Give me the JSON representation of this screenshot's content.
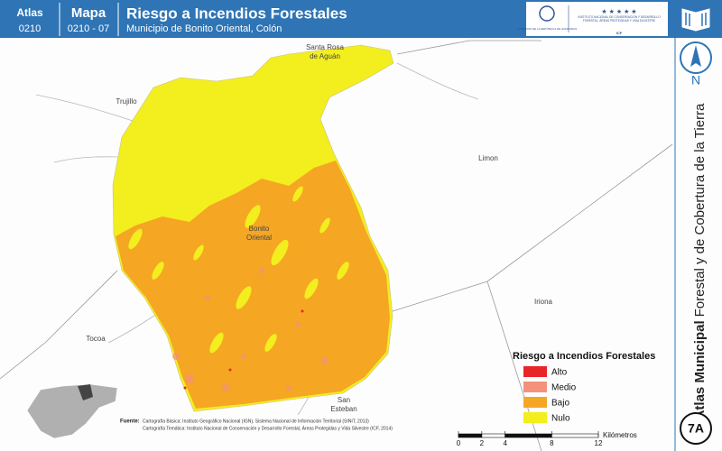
{
  "header": {
    "atlas_label": "Atlas",
    "atlas_code": "0210",
    "map_label": "Mapa",
    "map_code": "0210 - 07",
    "title": "Riesgo a Incendios Forestales",
    "subtitle": "Municipio de Bonito Oriental, Colón",
    "logo_left": "GOBIERNO DE LA REPÚBLICA DE HONDURAS",
    "logo_right": "INSTITUTO NACIONAL DE CONSERVACIÓN Y DESARROLLO FORESTAL, ÁREAS PROTEGIDAS Y VIDA SILVESTRE",
    "logo_right_abbr": "ICF"
  },
  "sidebar": {
    "north": "N",
    "series_bold": "Atlas Municipal",
    "series_rest": "Forestal y de Cobertura de la Tierra",
    "sheet": "7A"
  },
  "places": [
    {
      "lines": [
        "Santa Rosa",
        "de Aguán"
      ]
    },
    {
      "lines": [
        "Trujillo"
      ]
    },
    {
      "lines": [
        "Limon"
      ]
    },
    {
      "lines": [
        "Bonito",
        "Oriental"
      ]
    },
    {
      "lines": [
        "Iriona"
      ]
    },
    {
      "lines": [
        "Tocoa"
      ]
    },
    {
      "lines": [
        "San",
        "Esteban"
      ]
    }
  ],
  "legend": {
    "title": "Riesgo a Incendios Forestales",
    "items": [
      {
        "label": "Alto",
        "color": "#e8262a"
      },
      {
        "label": "Medio",
        "color": "#f4917a"
      },
      {
        "label": "Bajo",
        "color": "#f5a623"
      },
      {
        "label": "Nulo",
        "color": "#f3ee1e"
      }
    ]
  },
  "source": {
    "label": "Fuente:",
    "lines": [
      "Cartografía Básica: Instituto Geográfico Nacional (IGN), Sistema Nacional de Información Territorial (SINIT, 2013)",
      "Cartografía Temática: Instituto Nacional de Conservación y Desarrollo Forestal, Áreas Protegidas y Vida Silvestre (ICF, 2014)"
    ]
  },
  "scale_bar": {
    "ticks": [
      0,
      2,
      4,
      8,
      12
    ],
    "unit": "Kilómetros"
  }
}
